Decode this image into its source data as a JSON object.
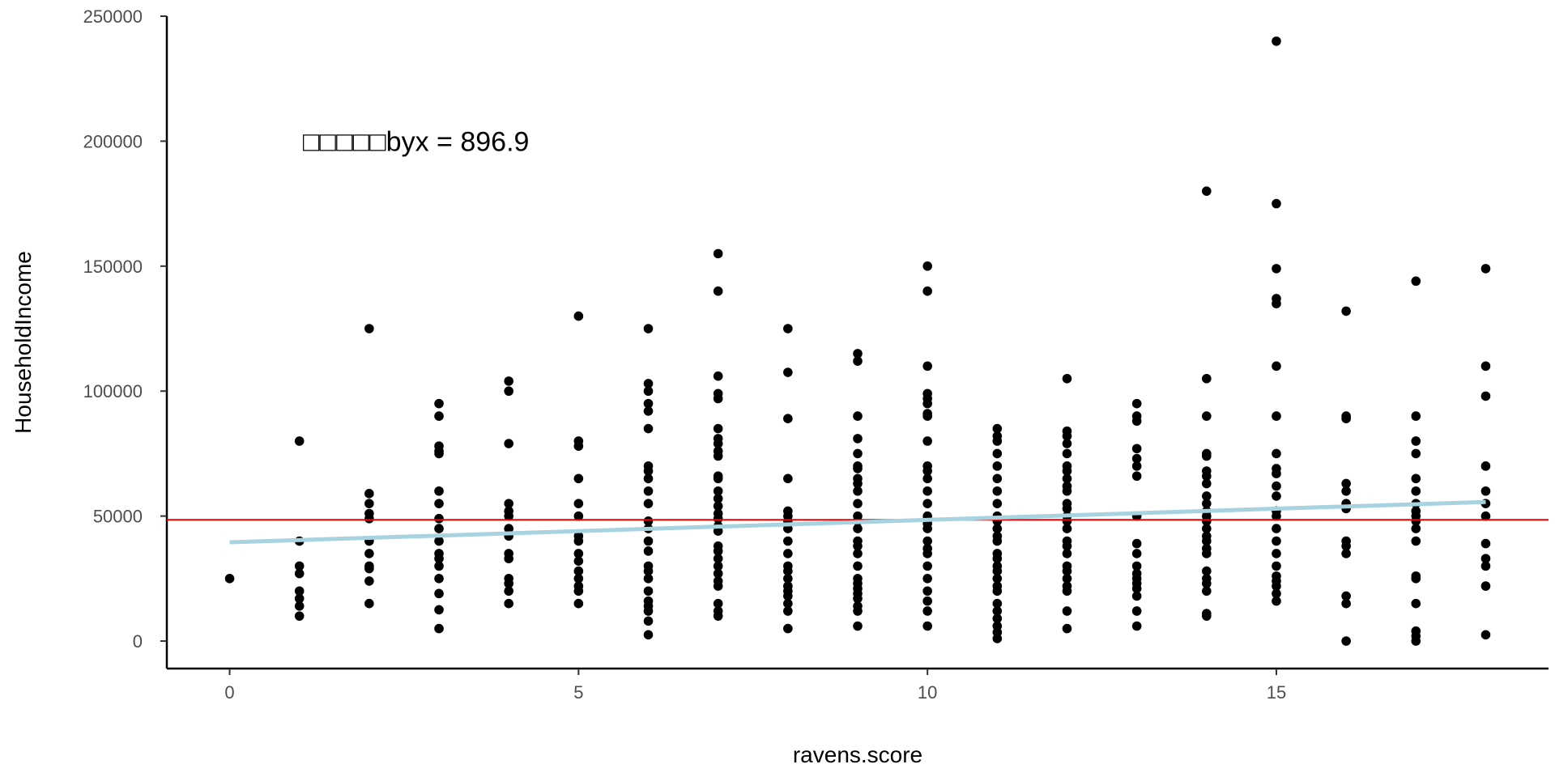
{
  "chart_data": {
    "type": "scatter",
    "title": "",
    "xlabel": "ravens.score",
    "ylabel": "HouseholdIncome",
    "xlim": [
      -0.9,
      18.9
    ],
    "ylim": [
      -11000,
      250000
    ],
    "x_ticks": [
      0,
      5,
      10,
      15
    ],
    "y_ticks": [
      0,
      50000,
      100000,
      150000,
      200000,
      250000
    ],
    "grid": false,
    "annotation": {
      "text": "□□□□□byx = 896.9",
      "x": 1.05,
      "y": 200000
    },
    "hline": {
      "y": 48500,
      "color": "#ee0000"
    },
    "regression_line": {
      "x": [
        0,
        18
      ],
      "y": [
        39500,
        55644
      ],
      "color": "#a7d2df"
    },
    "point_color": "#000000",
    "points": [
      [
        0,
        25000
      ],
      [
        1,
        80000
      ],
      [
        1,
        40000
      ],
      [
        1,
        30000
      ],
      [
        1,
        27000
      ],
      [
        1,
        20000
      ],
      [
        1,
        17000
      ],
      [
        1,
        14000
      ],
      [
        1,
        10000
      ],
      [
        2,
        125000
      ],
      [
        2,
        59000
      ],
      [
        2,
        55000
      ],
      [
        2,
        51000
      ],
      [
        2,
        49000
      ],
      [
        2,
        40000
      ],
      [
        2,
        35000
      ],
      [
        2,
        30000
      ],
      [
        2,
        29000
      ],
      [
        2,
        24000
      ],
      [
        2,
        15000
      ],
      [
        3,
        95000
      ],
      [
        3,
        90000
      ],
      [
        3,
        78000
      ],
      [
        3,
        76000
      ],
      [
        3,
        75000
      ],
      [
        3,
        60000
      ],
      [
        3,
        55000
      ],
      [
        3,
        49000
      ],
      [
        3,
        45000
      ],
      [
        3,
        40000
      ],
      [
        3,
        35000
      ],
      [
        3,
        33000
      ],
      [
        3,
        30000
      ],
      [
        3,
        25000
      ],
      [
        3,
        19000
      ],
      [
        3,
        12500
      ],
      [
        3,
        5000
      ],
      [
        4,
        104000
      ],
      [
        4,
        100000
      ],
      [
        4,
        79000
      ],
      [
        4,
        55000
      ],
      [
        4,
        52000
      ],
      [
        4,
        50000
      ],
      [
        4,
        45000
      ],
      [
        4,
        42000
      ],
      [
        4,
        35000
      ],
      [
        4,
        33000
      ],
      [
        4,
        25000
      ],
      [
        4,
        23000
      ],
      [
        4,
        20000
      ],
      [
        4,
        15000
      ],
      [
        5,
        130000
      ],
      [
        5,
        80000
      ],
      [
        5,
        78000
      ],
      [
        5,
        65000
      ],
      [
        5,
        55000
      ],
      [
        5,
        50000
      ],
      [
        5,
        42000
      ],
      [
        5,
        40000
      ],
      [
        5,
        35000
      ],
      [
        5,
        32000
      ],
      [
        5,
        28000
      ],
      [
        5,
        25000
      ],
      [
        5,
        22000
      ],
      [
        5,
        20000
      ],
      [
        5,
        15000
      ],
      [
        6,
        125000
      ],
      [
        6,
        103000
      ],
      [
        6,
        100000
      ],
      [
        6,
        95000
      ],
      [
        6,
        92000
      ],
      [
        6,
        85000
      ],
      [
        6,
        70000
      ],
      [
        6,
        68000
      ],
      [
        6,
        65000
      ],
      [
        6,
        60000
      ],
      [
        6,
        55000
      ],
      [
        6,
        48000
      ],
      [
        6,
        45000
      ],
      [
        6,
        40000
      ],
      [
        6,
        36000
      ],
      [
        6,
        30000
      ],
      [
        6,
        28000
      ],
      [
        6,
        25000
      ],
      [
        6,
        20000
      ],
      [
        6,
        16000
      ],
      [
        6,
        14000
      ],
      [
        6,
        12000
      ],
      [
        6,
        8000
      ],
      [
        6,
        2500
      ],
      [
        7,
        155000
      ],
      [
        7,
        140000
      ],
      [
        7,
        106000
      ],
      [
        7,
        99000
      ],
      [
        7,
        97000
      ],
      [
        7,
        85000
      ],
      [
        7,
        81000
      ],
      [
        7,
        79000
      ],
      [
        7,
        76000
      ],
      [
        7,
        74000
      ],
      [
        7,
        66000
      ],
      [
        7,
        65000
      ],
      [
        7,
        60000
      ],
      [
        7,
        57000
      ],
      [
        7,
        54000
      ],
      [
        7,
        51000
      ],
      [
        7,
        49000
      ],
      [
        7,
        46000
      ],
      [
        7,
        44000
      ],
      [
        7,
        38000
      ],
      [
        7,
        36000
      ],
      [
        7,
        33000
      ],
      [
        7,
        30000
      ],
      [
        7,
        27000
      ],
      [
        7,
        24000
      ],
      [
        7,
        22000
      ],
      [
        7,
        15000
      ],
      [
        7,
        12000
      ],
      [
        7,
        10000
      ],
      [
        8,
        125000
      ],
      [
        8,
        107500
      ],
      [
        8,
        89000
      ],
      [
        8,
        65000
      ],
      [
        8,
        52000
      ],
      [
        8,
        50000
      ],
      [
        8,
        48000
      ],
      [
        8,
        45000
      ],
      [
        8,
        40000
      ],
      [
        8,
        35000
      ],
      [
        8,
        30000
      ],
      [
        8,
        28000
      ],
      [
        8,
        25000
      ],
      [
        8,
        22000
      ],
      [
        8,
        20000
      ],
      [
        8,
        18000
      ],
      [
        8,
        15000
      ],
      [
        8,
        12000
      ],
      [
        8,
        5000
      ],
      [
        9,
        115000
      ],
      [
        9,
        112000
      ],
      [
        9,
        90000
      ],
      [
        9,
        81000
      ],
      [
        9,
        75000
      ],
      [
        9,
        70000
      ],
      [
        9,
        69000
      ],
      [
        9,
        65000
      ],
      [
        9,
        63000
      ],
      [
        9,
        60000
      ],
      [
        9,
        55000
      ],
      [
        9,
        50000
      ],
      [
        9,
        48000
      ],
      [
        9,
        45000
      ],
      [
        9,
        40000
      ],
      [
        9,
        38000
      ],
      [
        9,
        35000
      ],
      [
        9,
        30000
      ],
      [
        9,
        25000
      ],
      [
        9,
        23000
      ],
      [
        9,
        21000
      ],
      [
        9,
        19000
      ],
      [
        9,
        17000
      ],
      [
        9,
        14000
      ],
      [
        9,
        12000
      ],
      [
        9,
        6000
      ],
      [
        10,
        150000
      ],
      [
        10,
        140000
      ],
      [
        10,
        110000
      ],
      [
        10,
        99000
      ],
      [
        10,
        97000
      ],
      [
        10,
        95000
      ],
      [
        10,
        91000
      ],
      [
        10,
        90000
      ],
      [
        10,
        80000
      ],
      [
        10,
        70000
      ],
      [
        10,
        68000
      ],
      [
        10,
        65000
      ],
      [
        10,
        60000
      ],
      [
        10,
        55000
      ],
      [
        10,
        50000
      ],
      [
        10,
        47000
      ],
      [
        10,
        45000
      ],
      [
        10,
        40000
      ],
      [
        10,
        37000
      ],
      [
        10,
        35000
      ],
      [
        10,
        30000
      ],
      [
        10,
        25000
      ],
      [
        10,
        20000
      ],
      [
        10,
        16000
      ],
      [
        10,
        12000
      ],
      [
        10,
        6000
      ],
      [
        11,
        85000
      ],
      [
        11,
        82000
      ],
      [
        11,
        80000
      ],
      [
        11,
        75000
      ],
      [
        11,
        70000
      ],
      [
        11,
        65000
      ],
      [
        11,
        60000
      ],
      [
        11,
        55000
      ],
      [
        11,
        50000
      ],
      [
        11,
        48000
      ],
      [
        11,
        45000
      ],
      [
        11,
        42000
      ],
      [
        11,
        40000
      ],
      [
        11,
        35000
      ],
      [
        11,
        33000
      ],
      [
        11,
        30000
      ],
      [
        11,
        28000
      ],
      [
        11,
        25000
      ],
      [
        11,
        22000
      ],
      [
        11,
        20000
      ],
      [
        11,
        15000
      ],
      [
        11,
        12000
      ],
      [
        11,
        9000
      ],
      [
        11,
        6000
      ],
      [
        11,
        3500
      ],
      [
        11,
        1000
      ],
      [
        12,
        105000
      ],
      [
        12,
        84000
      ],
      [
        12,
        82000
      ],
      [
        12,
        79000
      ],
      [
        12,
        75000
      ],
      [
        12,
        70000
      ],
      [
        12,
        68000
      ],
      [
        12,
        65000
      ],
      [
        12,
        62000
      ],
      [
        12,
        60000
      ],
      [
        12,
        55000
      ],
      [
        12,
        53000
      ],
      [
        12,
        50000
      ],
      [
        12,
        48000
      ],
      [
        12,
        45000
      ],
      [
        12,
        40000
      ],
      [
        12,
        38000
      ],
      [
        12,
        35000
      ],
      [
        12,
        30000
      ],
      [
        12,
        28000
      ],
      [
        12,
        25000
      ],
      [
        12,
        22000
      ],
      [
        12,
        20000
      ],
      [
        12,
        12000
      ],
      [
        12,
        5000
      ],
      [
        13,
        95000
      ],
      [
        13,
        90000
      ],
      [
        13,
        88000
      ],
      [
        13,
        77000
      ],
      [
        13,
        73000
      ],
      [
        13,
        70000
      ],
      [
        13,
        66000
      ],
      [
        13,
        50000
      ],
      [
        13,
        39000
      ],
      [
        13,
        35000
      ],
      [
        13,
        30000
      ],
      [
        13,
        27000
      ],
      [
        13,
        25000
      ],
      [
        13,
        23000
      ],
      [
        13,
        21000
      ],
      [
        13,
        18000
      ],
      [
        13,
        12000
      ],
      [
        13,
        6000
      ],
      [
        14,
        180000
      ],
      [
        14,
        105000
      ],
      [
        14,
        90000
      ],
      [
        14,
        75000
      ],
      [
        14,
        74000
      ],
      [
        14,
        68000
      ],
      [
        14,
        66000
      ],
      [
        14,
        63000
      ],
      [
        14,
        58000
      ],
      [
        14,
        55000
      ],
      [
        14,
        52000
      ],
      [
        14,
        50000
      ],
      [
        14,
        48000
      ],
      [
        14,
        45000
      ],
      [
        14,
        42000
      ],
      [
        14,
        40000
      ],
      [
        14,
        37000
      ],
      [
        14,
        35000
      ],
      [
        14,
        28000
      ],
      [
        14,
        25000
      ],
      [
        14,
        23000
      ],
      [
        14,
        20000
      ],
      [
        14,
        11000
      ],
      [
        14,
        10000
      ],
      [
        15,
        240000
      ],
      [
        15,
        175000
      ],
      [
        15,
        149000
      ],
      [
        15,
        137000
      ],
      [
        15,
        135000
      ],
      [
        15,
        110000
      ],
      [
        15,
        90000
      ],
      [
        15,
        75000
      ],
      [
        15,
        69000
      ],
      [
        15,
        67000
      ],
      [
        15,
        62000
      ],
      [
        15,
        58000
      ],
      [
        15,
        52000
      ],
      [
        15,
        50000
      ],
      [
        15,
        45000
      ],
      [
        15,
        40000
      ],
      [
        15,
        35000
      ],
      [
        15,
        30000
      ],
      [
        15,
        26000
      ],
      [
        15,
        24000
      ],
      [
        15,
        22000
      ],
      [
        15,
        19000
      ],
      [
        15,
        16000
      ],
      [
        16,
        132000
      ],
      [
        16,
        90000
      ],
      [
        16,
        89000
      ],
      [
        16,
        63000
      ],
      [
        16,
        60000
      ],
      [
        16,
        55000
      ],
      [
        16,
        53000
      ],
      [
        16,
        40000
      ],
      [
        16,
        38000
      ],
      [
        16,
        35000
      ],
      [
        16,
        18000
      ],
      [
        16,
        15000
      ],
      [
        16,
        0
      ],
      [
        17,
        144000
      ],
      [
        17,
        90000
      ],
      [
        17,
        80000
      ],
      [
        17,
        75000
      ],
      [
        17,
        65000
      ],
      [
        17,
        60000
      ],
      [
        17,
        55000
      ],
      [
        17,
        52000
      ],
      [
        17,
        50000
      ],
      [
        17,
        48000
      ],
      [
        17,
        45000
      ],
      [
        17,
        40000
      ],
      [
        17,
        26000
      ],
      [
        17,
        25000
      ],
      [
        17,
        15000
      ],
      [
        17,
        4000
      ],
      [
        17,
        2000
      ],
      [
        17,
        0
      ],
      [
        18,
        149000
      ],
      [
        18,
        110000
      ],
      [
        18,
        98000
      ],
      [
        18,
        70000
      ],
      [
        18,
        60000
      ],
      [
        18,
        55000
      ],
      [
        18,
        50000
      ],
      [
        18,
        39000
      ],
      [
        18,
        33000
      ],
      [
        18,
        30000
      ],
      [
        18,
        22000
      ],
      [
        18,
        2500
      ]
    ]
  }
}
